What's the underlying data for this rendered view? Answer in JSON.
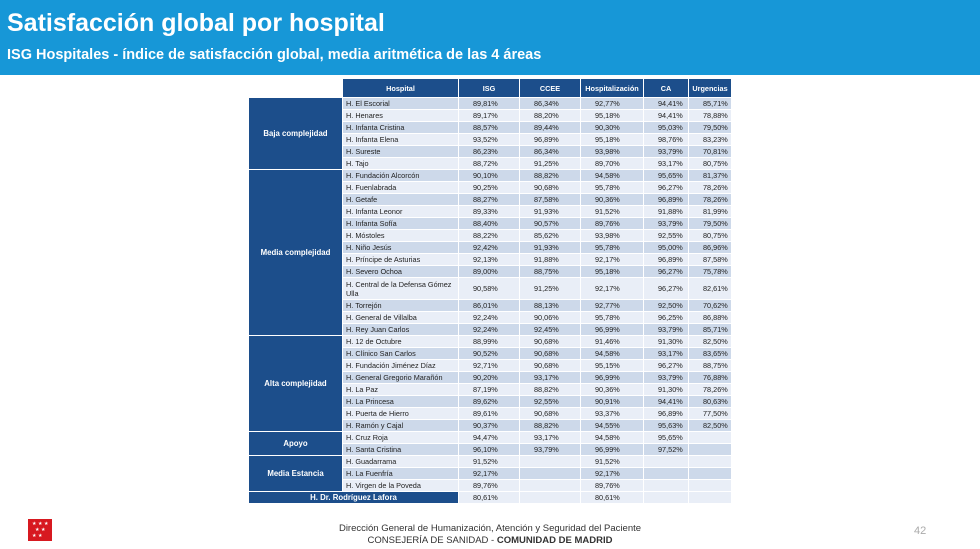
{
  "header": {
    "title": "Satisfacción global por hospital",
    "subtitle": "ISG Hospitales - índice de satisfacción global, media aritmética de las 4 áreas"
  },
  "table": {
    "columns": [
      "Hospital",
      "ISG",
      "CCEE",
      "Hospitalización",
      "CA",
      "Urgencias"
    ],
    "groups": {
      "baja": "Baja complejidad",
      "media": "Media complejidad",
      "alta": "Alta complejidad",
      "apoyo": "Apoyo",
      "estancia": "Media Estancia"
    },
    "rows": [
      [
        "H. El Escorial",
        "89,81%",
        "86,34%",
        "92,77%",
        "94,41%",
        "85,71%"
      ],
      [
        "H. Henares",
        "89,17%",
        "88,20%",
        "95,18%",
        "94,41%",
        "78,88%"
      ],
      [
        "H. Infanta Cristina",
        "88,57%",
        "89,44%",
        "90,30%",
        "95,03%",
        "79,50%"
      ],
      [
        "H. Infanta Elena",
        "93,52%",
        "96,89%",
        "95,18%",
        "98,76%",
        "83,23%"
      ],
      [
        "H. Sureste",
        "86,23%",
        "86,34%",
        "93,98%",
        "93,79%",
        "70,81%"
      ],
      [
        "H. Tajo",
        "88,72%",
        "91,25%",
        "89,70%",
        "93,17%",
        "80,75%"
      ],
      [
        "H. Fundación Alcorcón",
        "90,10%",
        "88,82%",
        "94,58%",
        "95,65%",
        "81,37%"
      ],
      [
        "H. Fuenlabrada",
        "90,25%",
        "90,68%",
        "95,78%",
        "96,27%",
        "78,26%"
      ],
      [
        "H. Getafe",
        "88,27%",
        "87,58%",
        "90,36%",
        "96,89%",
        "78,26%"
      ],
      [
        "H. Infanta Leonor",
        "89,33%",
        "91,93%",
        "91,52%",
        "91,88%",
        "81,99%"
      ],
      [
        "H. Infanta Sofía",
        "88,40%",
        "90,57%",
        "89,76%",
        "93,79%",
        "79,50%"
      ],
      [
        "H. Móstoles",
        "88,22%",
        "85,62%",
        "93,98%",
        "92,55%",
        "80,75%"
      ],
      [
        "H. Niño Jesús",
        "92,42%",
        "91,93%",
        "95,78%",
        "95,00%",
        "86,96%"
      ],
      [
        "H. Príncipe de Asturias",
        "92,13%",
        "91,88%",
        "92,17%",
        "96,89%",
        "87,58%"
      ],
      [
        "H. Severo Ochoa",
        "89,00%",
        "88,75%",
        "95,18%",
        "96,27%",
        "75,78%"
      ],
      [
        "H. Central de la Defensa Gómez Ulla",
        "90,58%",
        "91,25%",
        "92,17%",
        "96,27%",
        "82,61%"
      ],
      [
        "H. Torrejón",
        "86,01%",
        "88,13%",
        "92,77%",
        "92,50%",
        "70,62%"
      ],
      [
        "H. General de Villalba",
        "92,24%",
        "90,06%",
        "95,78%",
        "96,25%",
        "86,88%"
      ],
      [
        "H. Rey Juan Carlos",
        "92,24%",
        "92,45%",
        "96,99%",
        "93,79%",
        "85,71%"
      ],
      [
        "H. 12 de Octubre",
        "88,99%",
        "90,68%",
        "91,46%",
        "91,30%",
        "82,50%"
      ],
      [
        "H. Clínico San Carlos",
        "90,52%",
        "90,68%",
        "94,58%",
        "93,17%",
        "83,65%"
      ],
      [
        "H. Fundación Jiménez Díaz",
        "92,71%",
        "90,68%",
        "95,15%",
        "96,27%",
        "88,75%"
      ],
      [
        "H. General Gregorio Marañón",
        "90,20%",
        "93,17%",
        "96,99%",
        "93,79%",
        "76,88%"
      ],
      [
        "H. La Paz",
        "87,19%",
        "88,82%",
        "90,36%",
        "91,30%",
        "78,26%"
      ],
      [
        "H. La Princesa",
        "89,62%",
        "92,55%",
        "90,91%",
        "94,41%",
        "80,63%"
      ],
      [
        "H. Puerta de Hierro",
        "89,61%",
        "90,68%",
        "93,37%",
        "96,89%",
        "77,50%"
      ],
      [
        "H. Ramón y Cajal",
        "90,37%",
        "88,82%",
        "94,55%",
        "95,63%",
        "82,50%"
      ],
      [
        "H. Cruz Roja",
        "94,47%",
        "93,17%",
        "94,58%",
        "95,65%",
        ""
      ],
      [
        "H. Santa Cristina",
        "96,10%",
        "93,79%",
        "96,99%",
        "97,52%",
        ""
      ],
      [
        "H. Guadarrama",
        "91,52%",
        "",
        "91,52%",
        "",
        ""
      ],
      [
        "H. La Fuenfría",
        "92,17%",
        "",
        "92,17%",
        "",
        ""
      ],
      [
        "H. Virgen de la Poveda",
        "89,76%",
        "",
        "89,76%",
        "",
        ""
      ]
    ],
    "lafora": {
      "label": "H. Dr. Rodríguez Lafora",
      "isg": "80,61%",
      "hosp": "80,61%"
    }
  },
  "footer": {
    "line1": "Dirección General de Humanización, Atención y Seguridad del Paciente",
    "line2_normal": "CONSEJERÍA DE SANIDAD - ",
    "line2_bold": "COMUNIDAD DE MADRID",
    "page": "42"
  },
  "colors": {
    "banner": "#1797d7",
    "header_cell": "#1c4e8b",
    "row_a": "#cdd9ea",
    "row_b": "#e9eef7"
  }
}
